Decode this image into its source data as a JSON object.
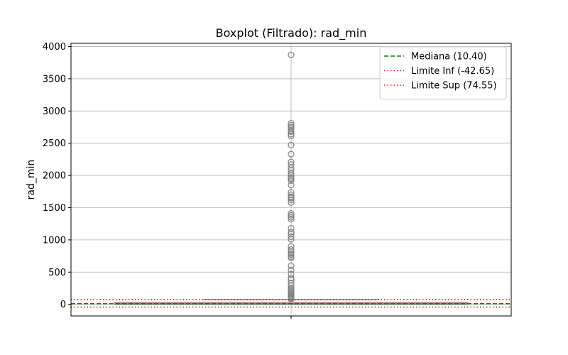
{
  "chart_data": {
    "type": "box",
    "title": "Boxplot (Filtrado): rad_min",
    "xlabel": "",
    "ylabel": "rad_min",
    "ylim": [
      -180,
      4050
    ],
    "yticks": [
      0,
      500,
      1000,
      1500,
      2000,
      2500,
      3000,
      3500,
      4000
    ],
    "grid": true,
    "legend_position": "upper-right",
    "box": {
      "q1": 0,
      "median": 10.4,
      "q3": 32,
      "whisker_low": 0,
      "whisker_high": 74
    },
    "outliers": [
      3870,
      2810,
      2780,
      2750,
      2730,
      2700,
      2680,
      2640,
      2610,
      2470,
      2330,
      2210,
      2170,
      2120,
      2080,
      2030,
      2000,
      1970,
      1950,
      1920,
      1850,
      1740,
      1700,
      1670,
      1650,
      1620,
      1580,
      1410,
      1380,
      1350,
      1320,
      1180,
      1120,
      1090,
      1050,
      1010,
      900,
      850,
      820,
      790,
      770,
      740,
      720,
      600,
      530,
      470,
      410,
      380,
      330,
      290,
      250,
      230,
      210,
      190,
      170,
      150,
      130,
      110,
      95,
      80
    ],
    "reference_lines": [
      {
        "name": "Mediana (10.40)",
        "value": 10.4,
        "color": "#008000",
        "style": "dashed"
      },
      {
        "name": "Limite Inf (-42.65)",
        "value": -42.65,
        "color": "#ff0000",
        "style": "dotted"
      },
      {
        "name": "Limite Sup (74.55)",
        "value": 74.55,
        "color": "#ff0000",
        "style": "dotted"
      }
    ],
    "colors": {
      "box_edge": "#808080",
      "box_fill": "#ffffff",
      "grid": "#b0b0b0"
    }
  }
}
